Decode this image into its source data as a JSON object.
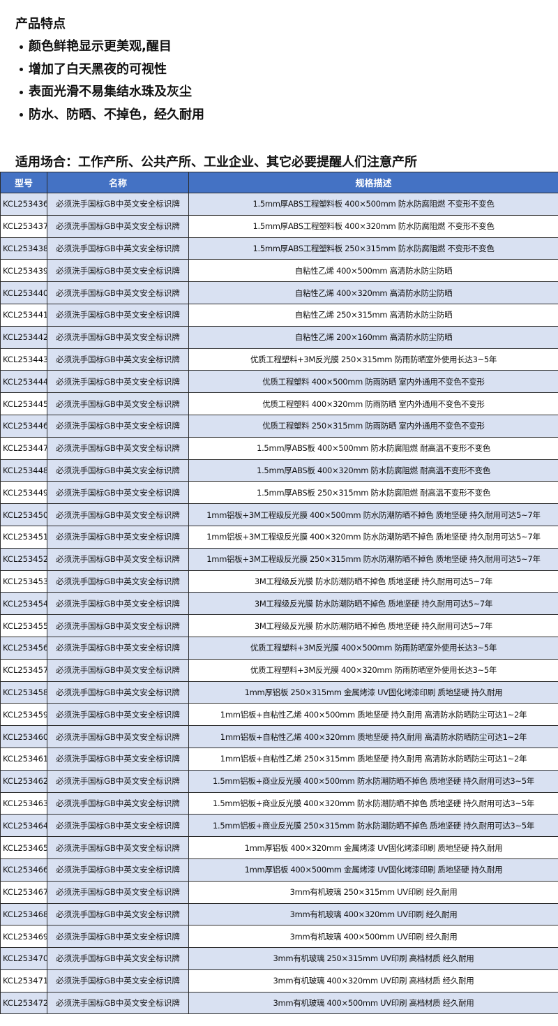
{
  "features": {
    "title": "产品特点",
    "items": [
      "颜色鲜艳显示更美观,醒目",
      "增加了白天黑夜的可视性",
      "表面光滑不易集结水珠及灰尘",
      "防水、防晒、不掉色，经久耐用"
    ]
  },
  "usage": "适用场合：工作产所、公共产所、工业企业、其它必要提醒人们注意产所",
  "colors": {
    "header_bg": "#4472C4",
    "stripe": "#D9E1F2"
  },
  "table": {
    "headers": [
      "型号",
      "名称",
      "规格描述"
    ],
    "rows": [
      [
        "KCL253436",
        "必须洗手国标GB中英文安全标识牌",
        "1.5mm厚ABS工程塑料板 400×500mm 防水防腐阻燃 不变形不变色"
      ],
      [
        "KCL253437",
        "必须洗手国标GB中英文安全标识牌",
        "1.5mm厚ABS工程塑料板 400×320mm 防水防腐阻燃 不变形不变色"
      ],
      [
        "KCL253438",
        "必须洗手国标GB中英文安全标识牌",
        "1.5mm厚ABS工程塑料板 250×315mm 防水防腐阻燃 不变形不变色"
      ],
      [
        "KCL253439",
        "必须洗手国标GB中英文安全标识牌",
        "自粘性乙烯 400×500mm 高清防水防尘防晒"
      ],
      [
        "KCL253440",
        "必须洗手国标GB中英文安全标识牌",
        "自粘性乙烯 400×320mm 高清防水防尘防晒"
      ],
      [
        "KCL253441",
        "必须洗手国标GB中英文安全标识牌",
        "自粘性乙烯 250×315mm 高清防水防尘防晒"
      ],
      [
        "KCL253442",
        "必须洗手国标GB中英文安全标识牌",
        "自粘性乙烯 200×160mm 高清防水防尘防晒"
      ],
      [
        "KCL253443",
        "必须洗手国标GB中英文安全标识牌",
        "优质工程塑料+3M反光膜 250×315mm 防雨防晒室外使用长达3~5年"
      ],
      [
        "KCL253444",
        "必须洗手国标GB中英文安全标识牌",
        "优质工程塑料 400×500mm 防雨防晒 室内外通用不变色不变形"
      ],
      [
        "KCL253445",
        "必须洗手国标GB中英文安全标识牌",
        "优质工程塑料 400×320mm 防雨防晒 室内外通用不变色不变形"
      ],
      [
        "KCL253446",
        "必须洗手国标GB中英文安全标识牌",
        "优质工程塑料 250×315mm 防雨防晒 室内外通用不变色不变形"
      ],
      [
        "KCL253447",
        "必须洗手国标GB中英文安全标识牌",
        "1.5mm厚ABS板 400×500mm 防水防腐阻燃 耐高温不变形不变色"
      ],
      [
        "KCL253448",
        "必须洗手国标GB中英文安全标识牌",
        "1.5mm厚ABS板 400×320mm 防水防腐阻燃 耐高温不变形不变色"
      ],
      [
        "KCL253449",
        "必须洗手国标GB中英文安全标识牌",
        "1.5mm厚ABS板 250×315mm 防水防腐阻燃 耐高温不变形不变色"
      ],
      [
        "KCL253450",
        "必须洗手国标GB中英文安全标识牌",
        "1mm铝板+3M工程级反光膜 400×500mm 防水防潮防晒不掉色 质地坚硬 持久耐用可达5~7年"
      ],
      [
        "KCL253451",
        "必须洗手国标GB中英文安全标识牌",
        "1mm铝板+3M工程级反光膜 400×320mm 防水防潮防晒不掉色 质地坚硬 持久耐用可达5~7年"
      ],
      [
        "KCL253452",
        "必须洗手国标GB中英文安全标识牌",
        "1mm铝板+3M工程级反光膜 250×315mm 防水防潮防晒不掉色 质地坚硬 持久耐用可达5~7年"
      ],
      [
        "KCL253453",
        "必须洗手国标GB中英文安全标识牌",
        "3M工程级反光膜 防水防潮防晒不掉色 质地坚硬 持久耐用可达5~7年"
      ],
      [
        "KCL253454",
        "必须洗手国标GB中英文安全标识牌",
        "3M工程级反光膜 防水防潮防晒不掉色 质地坚硬 持久耐用可达5~7年"
      ],
      [
        "KCL253455",
        "必须洗手国标GB中英文安全标识牌",
        "3M工程级反光膜 防水防潮防晒不掉色 质地坚硬 持久耐用可达5~7年"
      ],
      [
        "KCL253456",
        "必须洗手国标GB中英文安全标识牌",
        "优质工程塑料+3M反光膜 400×500mm 防雨防晒室外使用长达3~5年"
      ],
      [
        "KCL253457",
        "必须洗手国标GB中英文安全标识牌",
        "优质工程塑料+3M反光膜 400×320mm 防雨防晒室外使用长达3~5年"
      ],
      [
        "KCL253458",
        "必须洗手国标GB中英文安全标识牌",
        "1mm厚铝板 250×315mm 金属烤漆 UV固化烤漆印刷 质地坚硬 持久耐用"
      ],
      [
        "KCL253459",
        "必须洗手国标GB中英文安全标识牌",
        "1mm铝板+自粘性乙烯 400×500mm 质地坚硬 持久耐用 高清防水防晒防尘可达1~2年"
      ],
      [
        "KCL253460",
        "必须洗手国标GB中英文安全标识牌",
        "1mm铝板+自粘性乙烯 400×320mm 质地坚硬 持久耐用 高清防水防晒防尘可达1~2年"
      ],
      [
        "KCL253461",
        "必须洗手国标GB中英文安全标识牌",
        "1mm铝板+自粘性乙烯 250×315mm 质地坚硬 持久耐用 高清防水防晒防尘可达1~2年"
      ],
      [
        "KCL253462",
        "必须洗手国标GB中英文安全标识牌",
        "1.5mm铝板+商业反光膜 400×500mm 防水防潮防晒不掉色 质地坚硬 持久耐用可达3~5年"
      ],
      [
        "KCL253463",
        "必须洗手国标GB中英文安全标识牌",
        "1.5mm铝板+商业反光膜 400×320mm 防水防潮防晒不掉色 质地坚硬 持久耐用可达3~5年"
      ],
      [
        "KCL253464",
        "必须洗手国标GB中英文安全标识牌",
        "1.5mm铝板+商业反光膜 250×315mm 防水防潮防晒不掉色 质地坚硬 持久耐用可达3~5年"
      ],
      [
        "KCL253465",
        "必须洗手国标GB中英文安全标识牌",
        "1mm厚铝板 400×320mm 金属烤漆 UV固化烤漆印刷 质地坚硬 持久耐用"
      ],
      [
        "KCL253466",
        "必须洗手国标GB中英文安全标识牌",
        "1mm厚铝板 400×500mm 金属烤漆 UV固化烤漆印刷 质地坚硬 持久耐用"
      ],
      [
        "KCL253467",
        "必须洗手国标GB中英文安全标识牌",
        "3mm有机玻璃 250×315mm UV印刷 经久耐用"
      ],
      [
        "KCL253468",
        "必须洗手国标GB中英文安全标识牌",
        "3mm有机玻璃 400×320mm UV印刷 经久耐用"
      ],
      [
        "KCL253469",
        "必须洗手国标GB中英文安全标识牌",
        "3mm有机玻璃 400×500mm UV印刷 经久耐用"
      ],
      [
        "KCL253470",
        "必须洗手国标GB中英文安全标识牌",
        "3mm有机玻璃 250×315mm UV印刷 高档材质 经久耐用"
      ],
      [
        "KCL253471",
        "必须洗手国标GB中英文安全标识牌",
        "3mm有机玻璃 400×320mm UV印刷 高档材质 经久耐用"
      ],
      [
        "KCL253472",
        "必须洗手国标GB中英文安全标识牌",
        "3mm有机玻璃 400×500mm UV印刷 高档材质 经久耐用"
      ]
    ]
  }
}
